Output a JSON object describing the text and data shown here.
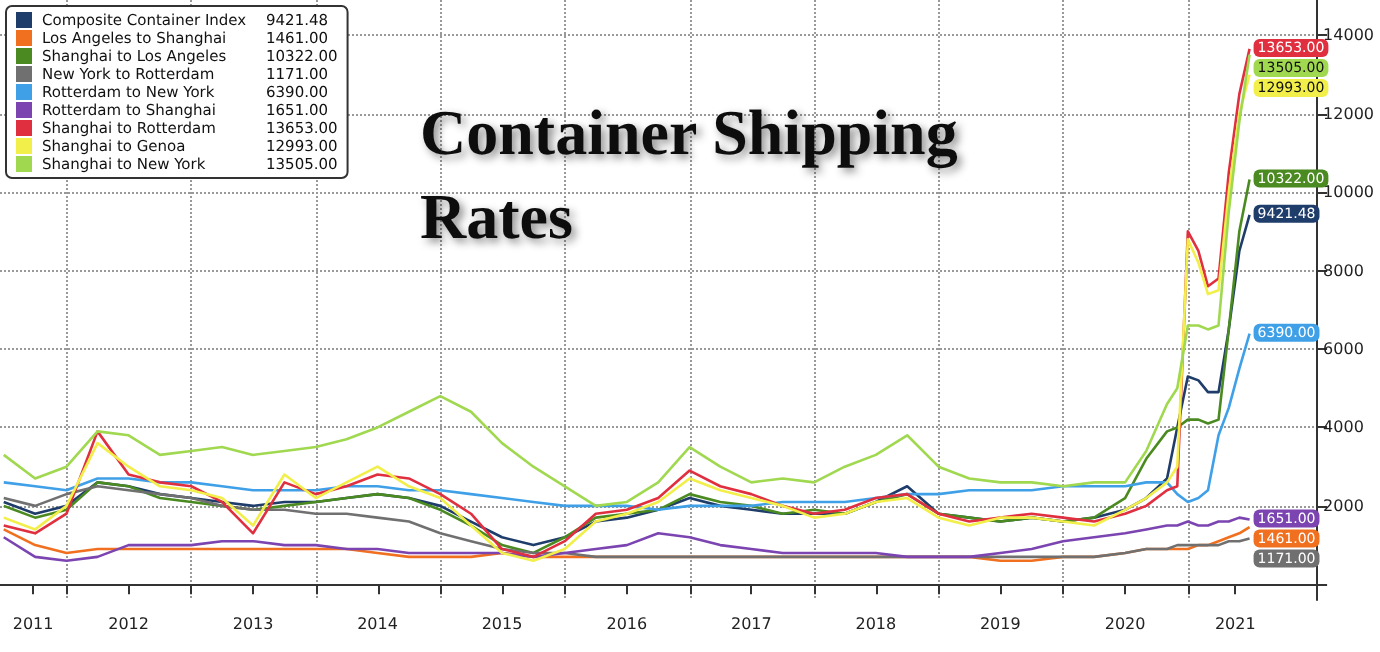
{
  "chart_data": {
    "type": "line",
    "title": "Container Shipping Rates",
    "legend": "top left",
    "grid": true,
    "xlim": [
      "2011-06-20",
      "2022-01-15"
    ],
    "xticks": [
      {
        "value": "2011-09-25",
        "label": "2011"
      },
      {
        "value": "2012-01-01",
        "label": null
      },
      {
        "value": "2012-07-01",
        "label": "2012"
      },
      {
        "value": "2013-01-01",
        "label": null
      },
      {
        "value": "2013-07-01",
        "label": "2013"
      },
      {
        "value": "2014-01-01",
        "label": null
      },
      {
        "value": "2014-07-01",
        "label": "2014"
      },
      {
        "value": "2015-01-01",
        "label": null
      },
      {
        "value": "2015-07-01",
        "label": "2015"
      },
      {
        "value": "2016-01-01",
        "label": null
      },
      {
        "value": "2016-07-01",
        "label": "2016"
      },
      {
        "value": "2017-01-01",
        "label": null
      },
      {
        "value": "2017-07-01",
        "label": "2017"
      },
      {
        "value": "2018-01-01",
        "label": null
      },
      {
        "value": "2018-07-01",
        "label": "2018"
      },
      {
        "value": "2019-01-01",
        "label": null
      },
      {
        "value": "2019-07-01",
        "label": "2019"
      },
      {
        "value": "2020-01-01",
        "label": null
      },
      {
        "value": "2020-07-01",
        "label": "2020"
      },
      {
        "value": "2021-01-01",
        "label": null
      },
      {
        "value": "2021-05-20",
        "label": "2021"
      }
    ],
    "ylim": [
      -400,
      14900
    ],
    "yticks": [
      {
        "value": 0,
        "label": null
      },
      2000,
      4000,
      6000,
      8000,
      10000,
      12000,
      14000
    ],
    "x": [
      "2011-07",
      "2011-10",
      "2012-01",
      "2012-04",
      "2012-07",
      "2012-10",
      "2013-01",
      "2013-04",
      "2013-07",
      "2013-10",
      "2014-01",
      "2014-04",
      "2014-07",
      "2014-10",
      "2015-01",
      "2015-04",
      "2015-07",
      "2015-10",
      "2016-01",
      "2016-04",
      "2016-07",
      "2016-10",
      "2017-01",
      "2017-04",
      "2017-07",
      "2017-10",
      "2018-01",
      "2018-04",
      "2018-07",
      "2018-10",
      "2019-01",
      "2019-04",
      "2019-07",
      "2019-10",
      "2020-01",
      "2020-04",
      "2020-07",
      "2020-09",
      "2020-11",
      "2020-12",
      "2021-01",
      "2021-02",
      "2021-03",
      "2021-04",
      "2021-05",
      "2021-06",
      "2021-07"
    ],
    "series": [
      {
        "name": "Composite Container Index",
        "color": "#1f3d6b",
        "values": [
          2100,
          1800,
          2000,
          2600,
          2500,
          2300,
          2200,
          2100,
          2000,
          2100,
          2100,
          2200,
          2300,
          2200,
          2000,
          1600,
          1200,
          1000,
          1200,
          1600,
          1700,
          1900,
          2200,
          2000,
          1900,
          1800,
          1800,
          1800,
          2100,
          2500,
          1800,
          1700,
          1600,
          1700,
          1600,
          1700,
          1900,
          2200,
          2700,
          4000,
          5300,
          5200,
          4900,
          4900,
          6500,
          8500,
          9421.48
        ],
        "value_labels": [
          null,
          null,
          null,
          null,
          null,
          null,
          null,
          null,
          null,
          null,
          null,
          null,
          null,
          null,
          null,
          null,
          null,
          null,
          null,
          null,
          null,
          null,
          null,
          null,
          null,
          null,
          null,
          null,
          null,
          null,
          null,
          null,
          null,
          null,
          null,
          null,
          null,
          null,
          null,
          null,
          null,
          null,
          null,
          null,
          null,
          null,
          "9421.48"
        ]
      },
      {
        "name": "Los Angeles to Shanghai",
        "color": "#f07020",
        "values": [
          1400,
          1000,
          800,
          900,
          900,
          900,
          900,
          900,
          900,
          900,
          900,
          900,
          800,
          700,
          700,
          700,
          800,
          700,
          700,
          700,
          700,
          700,
          700,
          700,
          700,
          700,
          700,
          700,
          700,
          700,
          700,
          700,
          600,
          600,
          700,
          700,
          800,
          900,
          900,
          900,
          900,
          1000,
          1000,
          1100,
          1200,
          1300,
          1461
        ],
        "value_labels": [
          null,
          null,
          null,
          null,
          null,
          null,
          null,
          null,
          null,
          null,
          null,
          null,
          null,
          null,
          null,
          null,
          null,
          null,
          null,
          null,
          null,
          null,
          null,
          null,
          null,
          null,
          null,
          null,
          null,
          null,
          null,
          null,
          null,
          null,
          null,
          null,
          null,
          null,
          null,
          null,
          null,
          null,
          null,
          null,
          null,
          null,
          "1461.00"
        ]
      },
      {
        "name": "Shanghai to Los Angeles",
        "color": "#4a8a20",
        "values": [
          2000,
          1700,
          1900,
          2600,
          2500,
          2200,
          2100,
          2000,
          1900,
          2000,
          2100,
          2200,
          2300,
          2200,
          1900,
          1500,
          1000,
          800,
          1200,
          1700,
          1800,
          1900,
          2300,
          2100,
          2000,
          1800,
          1900,
          1800,
          2100,
          2300,
          1800,
          1700,
          1600,
          1700,
          1600,
          1700,
          2200,
          3200,
          3900,
          4000,
          4200,
          4200,
          4100,
          4200,
          6500,
          9000,
          10322
        ],
        "value_labels": [
          null,
          null,
          null,
          null,
          null,
          null,
          null,
          null,
          null,
          null,
          null,
          null,
          null,
          null,
          null,
          null,
          null,
          null,
          null,
          null,
          null,
          null,
          null,
          null,
          null,
          null,
          null,
          null,
          null,
          null,
          null,
          null,
          null,
          null,
          null,
          null,
          null,
          null,
          null,
          null,
          null,
          null,
          null,
          null,
          null,
          null,
          "10322.00"
        ]
      },
      {
        "name": "New York to Rotterdam",
        "color": "#707070",
        "values": [
          2200,
          2000,
          2300,
          2500,
          2400,
          2300,
          2200,
          2000,
          1900,
          1900,
          1800,
          1800,
          1700,
          1600,
          1300,
          1100,
          900,
          800,
          800,
          700,
          700,
          700,
          700,
          700,
          700,
          700,
          700,
          700,
          700,
          700,
          700,
          700,
          700,
          700,
          700,
          700,
          800,
          900,
          900,
          1000,
          1000,
          1000,
          1000,
          1000,
          1100,
          1100,
          1171
        ],
        "value_labels": [
          null,
          null,
          null,
          null,
          null,
          null,
          null,
          null,
          null,
          null,
          null,
          null,
          null,
          null,
          null,
          null,
          null,
          null,
          null,
          null,
          null,
          null,
          null,
          null,
          null,
          null,
          null,
          null,
          null,
          null,
          null,
          null,
          null,
          null,
          null,
          null,
          null,
          null,
          null,
          null,
          null,
          null,
          null,
          null,
          null,
          null,
          "1171.00"
        ]
      },
      {
        "name": "Rotterdam to New York",
        "color": "#3fa0e8",
        "values": [
          2600,
          2500,
          2400,
          2700,
          2700,
          2600,
          2600,
          2500,
          2400,
          2400,
          2400,
          2500,
          2500,
          2400,
          2400,
          2300,
          2200,
          2100,
          2000,
          2000,
          2000,
          1900,
          2000,
          2000,
          2000,
          2100,
          2100,
          2100,
          2200,
          2300,
          2300,
          2400,
          2400,
          2400,
          2500,
          2500,
          2500,
          2600,
          2600,
          2300,
          2100,
          2200,
          2400,
          3800,
          4500,
          5500,
          6390
        ],
        "value_labels": [
          null,
          null,
          null,
          null,
          null,
          null,
          null,
          null,
          null,
          null,
          null,
          null,
          null,
          null,
          null,
          null,
          null,
          null,
          null,
          null,
          null,
          null,
          null,
          null,
          null,
          null,
          null,
          null,
          null,
          null,
          null,
          null,
          null,
          null,
          null,
          null,
          null,
          null,
          null,
          null,
          null,
          null,
          null,
          null,
          null,
          null,
          "6390.00"
        ]
      },
      {
        "name": "Rotterdam to Shanghai",
        "color": "#7b44b0",
        "values": [
          1200,
          700,
          600,
          700,
          1000,
          1000,
          1000,
          1100,
          1100,
          1000,
          1000,
          900,
          900,
          800,
          800,
          800,
          800,
          700,
          800,
          900,
          1000,
          1300,
          1200,
          1000,
          900,
          800,
          800,
          800,
          800,
          700,
          700,
          700,
          800,
          900,
          1100,
          1200,
          1300,
          1400,
          1500,
          1500,
          1600,
          1500,
          1500,
          1600,
          1600,
          1700,
          1651
        ],
        "value_labels": [
          null,
          null,
          null,
          null,
          null,
          null,
          null,
          null,
          null,
          null,
          null,
          null,
          null,
          null,
          null,
          null,
          null,
          null,
          null,
          null,
          null,
          null,
          null,
          null,
          null,
          null,
          null,
          null,
          null,
          null,
          null,
          null,
          null,
          null,
          null,
          null,
          null,
          null,
          null,
          null,
          null,
          null,
          null,
          null,
          null,
          null,
          "1651.00"
        ]
      },
      {
        "name": "Shanghai to Rotterdam",
        "color": "#e03040",
        "values": [
          1500,
          1300,
          1800,
          3900,
          2800,
          2600,
          2500,
          2100,
          1300,
          2600,
          2300,
          2500,
          2800,
          2700,
          2300,
          1800,
          900,
          700,
          1100,
          1800,
          1900,
          2200,
          2900,
          2500,
          2300,
          2000,
          1800,
          1900,
          2200,
          2300,
          1800,
          1600,
          1700,
          1800,
          1700,
          1600,
          1800,
          2000,
          2400,
          2500,
          9000,
          8500,
          7600,
          7800,
          10500,
          12500,
          13653
        ],
        "value_labels": [
          null,
          null,
          null,
          null,
          null,
          null,
          null,
          null,
          null,
          null,
          null,
          null,
          null,
          null,
          null,
          null,
          null,
          null,
          null,
          null,
          null,
          null,
          null,
          null,
          null,
          null,
          null,
          null,
          null,
          null,
          null,
          null,
          null,
          null,
          null,
          null,
          null,
          null,
          null,
          null,
          null,
          null,
          null,
          null,
          null,
          null,
          "13653.00"
        ]
      },
      {
        "name": "Shanghai to Genoa",
        "color": "#f2ee4a",
        "values": [
          1700,
          1400,
          2000,
          3600,
          3000,
          2500,
          2400,
          2200,
          1500,
          2800,
          2200,
          2600,
          3000,
          2500,
          2200,
          1500,
          800,
          600,
          900,
          1600,
          1800,
          2100,
          2700,
          2400,
          2200,
          2000,
          1700,
          1800,
          2100,
          2200,
          1700,
          1500,
          1700,
          1700,
          1600,
          1500,
          1900,
          2200,
          2600,
          3000,
          8800,
          8200,
          7400,
          7500,
          10000,
          12000,
          12993
        ],
        "value_labels": [
          null,
          null,
          null,
          null,
          null,
          null,
          null,
          null,
          null,
          null,
          null,
          null,
          null,
          null,
          null,
          null,
          null,
          null,
          null,
          null,
          null,
          null,
          null,
          null,
          null,
          null,
          null,
          null,
          null,
          null,
          null,
          null,
          null,
          null,
          null,
          null,
          null,
          null,
          null,
          null,
          null,
          null,
          null,
          null,
          null,
          null,
          "12993.00"
        ]
      },
      {
        "name": "Shanghai to New York",
        "color": "#a0d850",
        "values": [
          3300,
          2700,
          3000,
          3900,
          3800,
          3300,
          3400,
          3500,
          3300,
          3400,
          3500,
          3700,
          4000,
          4400,
          4800,
          4400,
          3600,
          3000,
          2500,
          2000,
          2100,
          2600,
          3500,
          3000,
          2600,
          2700,
          2600,
          3000,
          3300,
          3800,
          3000,
          2700,
          2600,
          2600,
          2500,
          2600,
          2600,
          3400,
          4600,
          5000,
          6600,
          6600,
          6500,
          6600,
          9500,
          11800,
          13505
        ],
        "value_labels": [
          null,
          null,
          null,
          null,
          null,
          null,
          null,
          null,
          null,
          null,
          null,
          null,
          null,
          null,
          null,
          null,
          null,
          null,
          null,
          null,
          null,
          null,
          null,
          null,
          null,
          null,
          null,
          null,
          null,
          null,
          null,
          null,
          null,
          null,
          null,
          null,
          null,
          null,
          null,
          null,
          null,
          null,
          null,
          null,
          null,
          null,
          "13505.00"
        ]
      }
    ]
  }
}
